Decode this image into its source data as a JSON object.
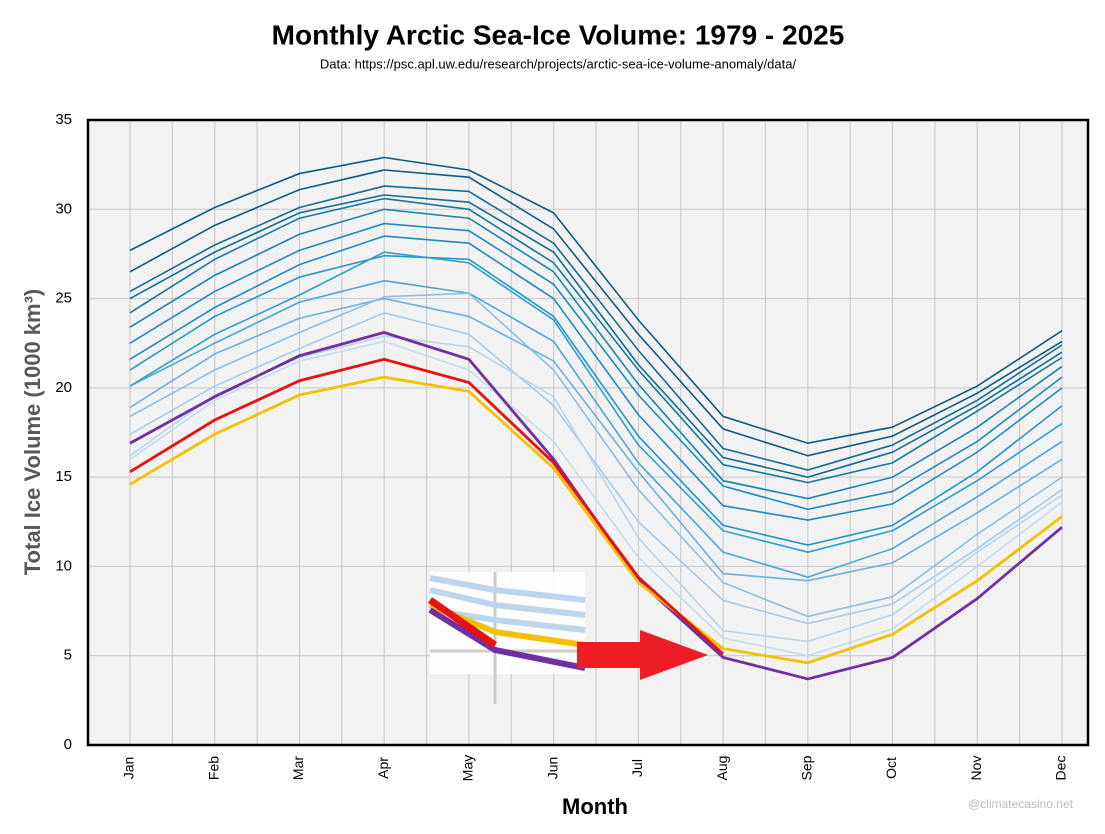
{
  "chart_data": {
    "type": "line",
    "title": "Monthly Arctic Sea-Ice Volume: 1979 - 2025",
    "subtitle": "Data: https://psc.apl.uw.edu/research/projects/arctic-sea-ice-volume-anomaly/data/",
    "x_label": "Month",
    "y_label": "Total Ice Volume (1000 km³)",
    "watermark": "@climatecasino.net",
    "categories": [
      "Jan",
      "Feb",
      "Mar",
      "Apr",
      "May",
      "Jun",
      "Jul",
      "Aug",
      "Sep",
      "Oct",
      "Nov",
      "Dec"
    ],
    "ylim": [
      0,
      35
    ],
    "yticks": [
      0,
      5,
      10,
      15,
      20,
      25,
      30,
      35
    ],
    "grid": true,
    "series": [
      {
        "color": "#0d5b7e",
        "values": [
          27.7,
          30.1,
          32.0,
          32.9,
          32.2,
          29.8,
          23.8,
          18.4,
          16.9,
          17.8,
          20.1,
          23.2
        ]
      },
      {
        "color": "#0d5b7e",
        "values": [
          26.5,
          29.1,
          31.1,
          32.2,
          31.8,
          28.9,
          23.0,
          17.7,
          16.2,
          17.3,
          19.7,
          22.6
        ]
      },
      {
        "color": "#126c93",
        "values": [
          25.4,
          28.0,
          30.1,
          31.3,
          31.0,
          28.1,
          22.1,
          16.6,
          15.4,
          16.8,
          19.3,
          22.4
        ]
      },
      {
        "color": "#126c93",
        "values": [
          25.0,
          27.6,
          29.8,
          30.8,
          30.4,
          27.6,
          21.3,
          16.1,
          15.0,
          16.4,
          19.0,
          22.0
        ]
      },
      {
        "color": "#1478a3",
        "values": [
          24.2,
          27.2,
          29.5,
          30.6,
          30.0,
          27.0,
          21.0,
          15.7,
          14.7,
          15.8,
          18.7,
          21.7
        ]
      },
      {
        "color": "#1584b3",
        "values": [
          23.4,
          26.3,
          28.6,
          30.0,
          29.5,
          26.5,
          20.2,
          14.8,
          13.8,
          15.0,
          17.8,
          21.2
        ]
      },
      {
        "color": "#1a8cc0",
        "values": [
          22.5,
          25.4,
          27.7,
          29.2,
          28.8,
          25.8,
          19.6,
          14.5,
          13.2,
          14.2,
          17.0,
          20.6
        ]
      },
      {
        "color": "#1a8cc0",
        "values": [
          21.6,
          24.5,
          26.9,
          28.5,
          28.1,
          25.0,
          18.5,
          13.4,
          12.6,
          13.5,
          16.4,
          20.0
        ]
      },
      {
        "color": "#2196c8",
        "values": [
          21.0,
          24.0,
          26.2,
          27.4,
          27.2,
          24.0,
          17.3,
          12.3,
          11.2,
          12.3,
          15.3,
          19.0
        ]
      },
      {
        "color": "#2a9fd0",
        "values": [
          20.1,
          23.0,
          25.2,
          27.6,
          27.0,
          23.8,
          16.8,
          12.0,
          10.8,
          12.0,
          14.8,
          18.0
        ]
      },
      {
        "color": "#4aa7d3",
        "values": [
          20.1,
          22.5,
          24.8,
          26.0,
          25.3,
          22.6,
          15.8,
          10.8,
          9.4,
          11.0,
          13.9,
          17.0
        ]
      },
      {
        "color": "#6cb1d9",
        "values": [
          18.9,
          21.9,
          23.9,
          25.0,
          24.0,
          21.5,
          15.3,
          9.6,
          9.2,
          10.2,
          13.0,
          16.0
        ]
      },
      {
        "color": "#8bbfe0",
        "values": [
          18.4,
          21.0,
          23.1,
          25.1,
          25.3,
          21.0,
          14.3,
          9.1,
          7.2,
          8.3,
          11.8,
          15.0
        ]
      },
      {
        "color": "#a7cbe8",
        "values": [
          17.4,
          20.1,
          22.2,
          24.2,
          23.0,
          19.0,
          12.5,
          8.1,
          6.8,
          7.9,
          11.0,
          14.3
        ]
      },
      {
        "color": "#b9d5ed",
        "values": [
          16.2,
          19.6,
          21.7,
          22.9,
          22.3,
          19.5,
          11.6,
          6.4,
          5.8,
          7.3,
          10.8,
          14.0
        ]
      },
      {
        "color": "#c4dcef",
        "values": [
          16.0,
          19.3,
          21.5,
          22.6,
          21.0,
          17.0,
          10.5,
          6.0,
          5.0,
          6.5,
          10.0,
          13.6
        ]
      },
      {
        "color": "#7030a0",
        "values": [
          16.9,
          19.5,
          21.8,
          23.1,
          21.6,
          16.0,
          9.2,
          4.9,
          3.7,
          4.9,
          8.2,
          12.2
        ]
      },
      {
        "color": "#f5c000",
        "values": [
          14.6,
          17.4,
          19.6,
          20.6,
          19.8,
          15.5,
          9.1,
          5.4,
          4.6,
          6.2,
          9.2,
          12.8
        ]
      },
      {
        "color": "#e81010",
        "values": [
          15.3,
          18.2,
          20.4,
          21.6,
          20.3,
          15.8,
          9.4,
          5.1,
          null,
          null,
          null,
          null
        ]
      }
    ]
  }
}
